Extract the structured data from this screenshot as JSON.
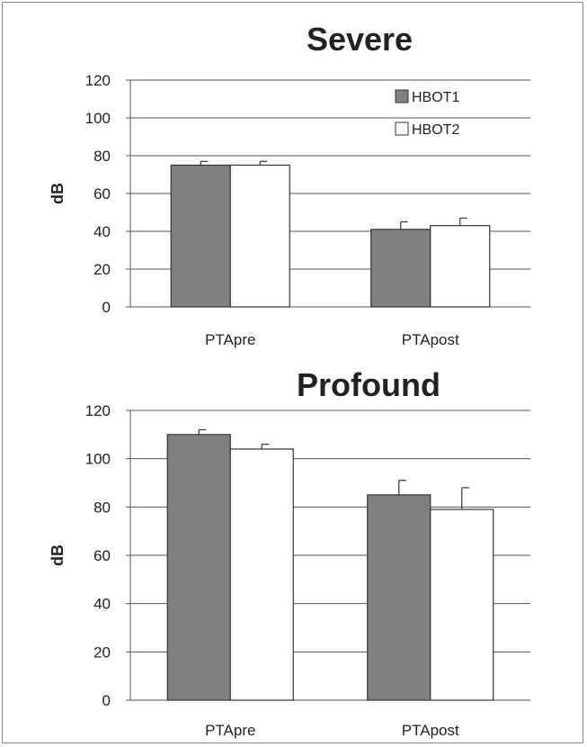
{
  "chart_data": [
    {
      "type": "bar",
      "title": "Severe",
      "xlabel": "",
      "ylabel": "dB",
      "ylim": [
        0,
        120
      ],
      "yticks": [
        0,
        20,
        40,
        60,
        80,
        100,
        120
      ],
      "categories": [
        "PTApre",
        "PTApost"
      ],
      "series": [
        {
          "name": "HBOT1",
          "values": [
            75,
            41
          ],
          "errors": [
            2,
            4
          ]
        },
        {
          "name": "HBOT2",
          "values": [
            75,
            43
          ],
          "errors": [
            2,
            4
          ]
        }
      ],
      "legend": "top-right",
      "grid": true,
      "colors": {
        "HBOT1": "#808080",
        "HBOT2": "#ffffff"
      }
    },
    {
      "type": "bar",
      "title": "Profound",
      "xlabel": "",
      "ylabel": "dB",
      "ylim": [
        0,
        120
      ],
      "yticks": [
        0,
        20,
        40,
        60,
        80,
        100,
        120
      ],
      "categories": [
        "PTApre",
        "PTApost"
      ],
      "series": [
        {
          "name": "HBOT1",
          "values": [
            110,
            85
          ],
          "errors": [
            2,
            6
          ]
        },
        {
          "name": "HBOT2",
          "values": [
            104,
            79
          ],
          "errors": [
            2,
            9
          ]
        }
      ],
      "legend": "none",
      "grid": true,
      "colors": {
        "HBOT1": "#808080",
        "HBOT2": "#ffffff"
      }
    }
  ]
}
